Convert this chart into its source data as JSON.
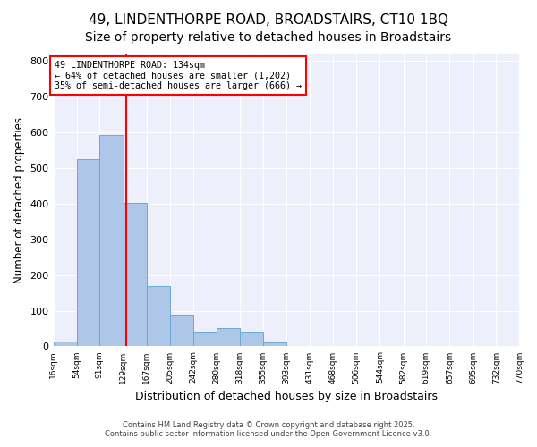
{
  "title1": "49, LINDENTHORPE ROAD, BROADSTAIRS, CT10 1BQ",
  "title2": "Size of property relative to detached houses in Broadstairs",
  "xlabel": "Distribution of detached houses by size in Broadstairs",
  "ylabel": "Number of detached properties",
  "bar_edges": [
    16,
    54,
    91,
    129,
    167,
    205,
    242,
    280,
    318,
    355,
    393,
    431,
    468,
    506,
    544,
    582,
    619,
    657,
    695,
    732,
    770
  ],
  "bar_heights": [
    14,
    524,
    592,
    402,
    168,
    88,
    40,
    50,
    40,
    12,
    0,
    0,
    0,
    0,
    0,
    0,
    0,
    0,
    0,
    0
  ],
  "bar_color": "#aec6e8",
  "bar_edgecolor": "#6aaad4",
  "property_line_x": 134,
  "property_line_color": "red",
  "annotation_text": "49 LINDENTHORPE ROAD: 134sqm\n← 64% of detached houses are smaller (1,202)\n35% of semi-detached houses are larger (666) →",
  "annotation_box_color": "red",
  "annotation_text_color": "black",
  "ylim": [
    0,
    820
  ],
  "yticks": [
    0,
    100,
    200,
    300,
    400,
    500,
    600,
    700,
    800
  ],
  "background_color": "#edf0fb",
  "footer1": "Contains HM Land Registry data © Crown copyright and database right 2025.",
  "footer2": "Contains public sector information licensed under the Open Government Licence v3.0.",
  "title1_fontsize": 11,
  "title2_fontsize": 10,
  "tick_labels": [
    "16sqm",
    "54sqm",
    "91sqm",
    "129sqm",
    "167sqm",
    "205sqm",
    "242sqm",
    "280sqm",
    "318sqm",
    "355sqm",
    "393sqm",
    "431sqm",
    "468sqm",
    "506sqm",
    "544sqm",
    "582sqm",
    "619sqm",
    "657sqm",
    "695sqm",
    "732sqm",
    "770sqm"
  ]
}
